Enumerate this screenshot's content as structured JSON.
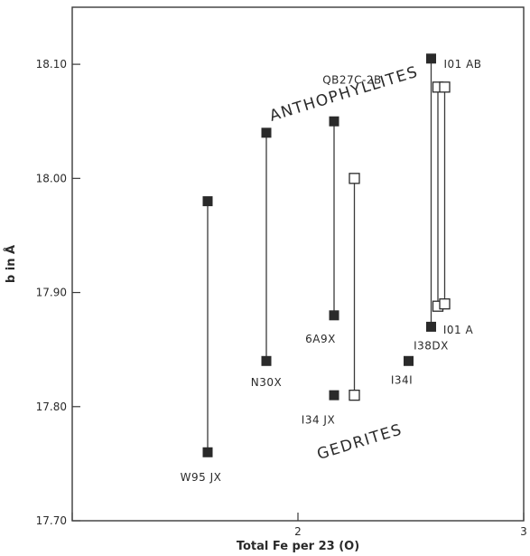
{
  "chart_data": {
    "type": "scatter",
    "xlabel": "Total Fe per 23 (O)",
    "ylabel": "b in Å",
    "xlim": [
      1,
      3
    ],
    "ylim": [
      17.7,
      18.15
    ],
    "x_ticks": [
      {
        "value": 1,
        "label": ""
      },
      {
        "value": 2,
        "label": "2"
      },
      {
        "value": 3,
        "label": "3"
      }
    ],
    "y_ticks": [
      {
        "value": 17.7,
        "label": "17.70"
      },
      {
        "value": 17.8,
        "label": "17.80"
      },
      {
        "value": 17.9,
        "label": "17.90"
      },
      {
        "value": 18.0,
        "label": "18.00"
      },
      {
        "value": 18.1,
        "label": "18.10"
      }
    ],
    "region_labels": [
      {
        "text": "ANTHOPHYLLITES",
        "x": 2.21,
        "y": 18.07,
        "angle": -17
      },
      {
        "text": "GEDRITES",
        "x": 2.28,
        "y": 17.765,
        "angle": -17
      }
    ],
    "samples": [
      {
        "name": "W95 JX",
        "marker": "filled",
        "x": 1.6,
        "y_values": [
          17.98,
          17.76
        ],
        "label_x": 1.57,
        "label_y": 17.735
      },
      {
        "name": "N30X",
        "marker": "filled",
        "x": 1.86,
        "y_values": [
          18.04,
          17.84
        ],
        "label_x": 1.86,
        "label_y": 17.818
      },
      {
        "name": "6A9X",
        "marker": "filled",
        "x": 2.16,
        "y_values": [
          18.05,
          17.88
        ],
        "label_x": 2.1,
        "label_y": 17.856
      },
      {
        "name": "I34 JX",
        "marker": "filled",
        "x": 2.16,
        "y_values": [
          17.81
        ],
        "label_x": 2.09,
        "label_y": 17.785
      },
      {
        "name": "QB27C-2B",
        "marker": "open",
        "x": 2.25,
        "y_values": [
          18.0,
          17.81
        ],
        "label_x": 2.24,
        "label_y": 18.083
      },
      {
        "name": "I34I",
        "marker": "filled",
        "x": 2.49,
        "y_values": [
          17.84
        ],
        "label_x": 2.46,
        "label_y": 17.82
      },
      {
        "name": "I38DX",
        "marker": "filled",
        "x": 2.59,
        "y_values": [
          18.105,
          17.87
        ],
        "label_x": 2.59,
        "label_y": 17.85
      },
      {
        "name": "I01 AB",
        "marker": "open",
        "x": 2.62,
        "y_values": [
          18.08,
          17.888
        ],
        "label_x": 2.73,
        "label_y": 18.097
      },
      {
        "name": "I01 A",
        "marker": "open",
        "x": 2.65,
        "y_values": [
          18.08,
          17.89
        ],
        "label_x": 2.71,
        "label_y": 17.864
      }
    ]
  }
}
